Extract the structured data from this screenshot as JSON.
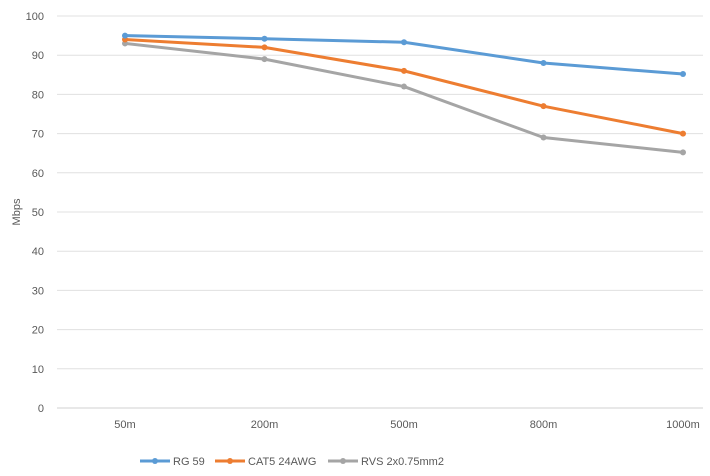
{
  "chart_data": {
    "type": "line",
    "title": "",
    "xlabel": "",
    "ylabel": "Mbps",
    "ylim": [
      0,
      100
    ],
    "yticks": [
      0,
      10,
      20,
      30,
      40,
      50,
      60,
      70,
      80,
      90,
      100
    ],
    "grid": true,
    "legend": "bottom",
    "categories": [
      "50m",
      "200m",
      "500m",
      "800m",
      "1000m"
    ],
    "series": [
      {
        "name": "RG 59",
        "color": "#5B9BD5",
        "values": [
          95,
          94.2,
          93.3,
          88,
          85.2
        ]
      },
      {
        "name": "CAT5 24AWG",
        "color": "#ED7D31",
        "values": [
          94,
          92,
          86,
          77,
          70
        ]
      },
      {
        "name": "RVS 2x0.75mm2",
        "color": "#A5A5A5",
        "values": [
          93,
          89,
          82,
          69,
          65.2
        ]
      }
    ]
  }
}
